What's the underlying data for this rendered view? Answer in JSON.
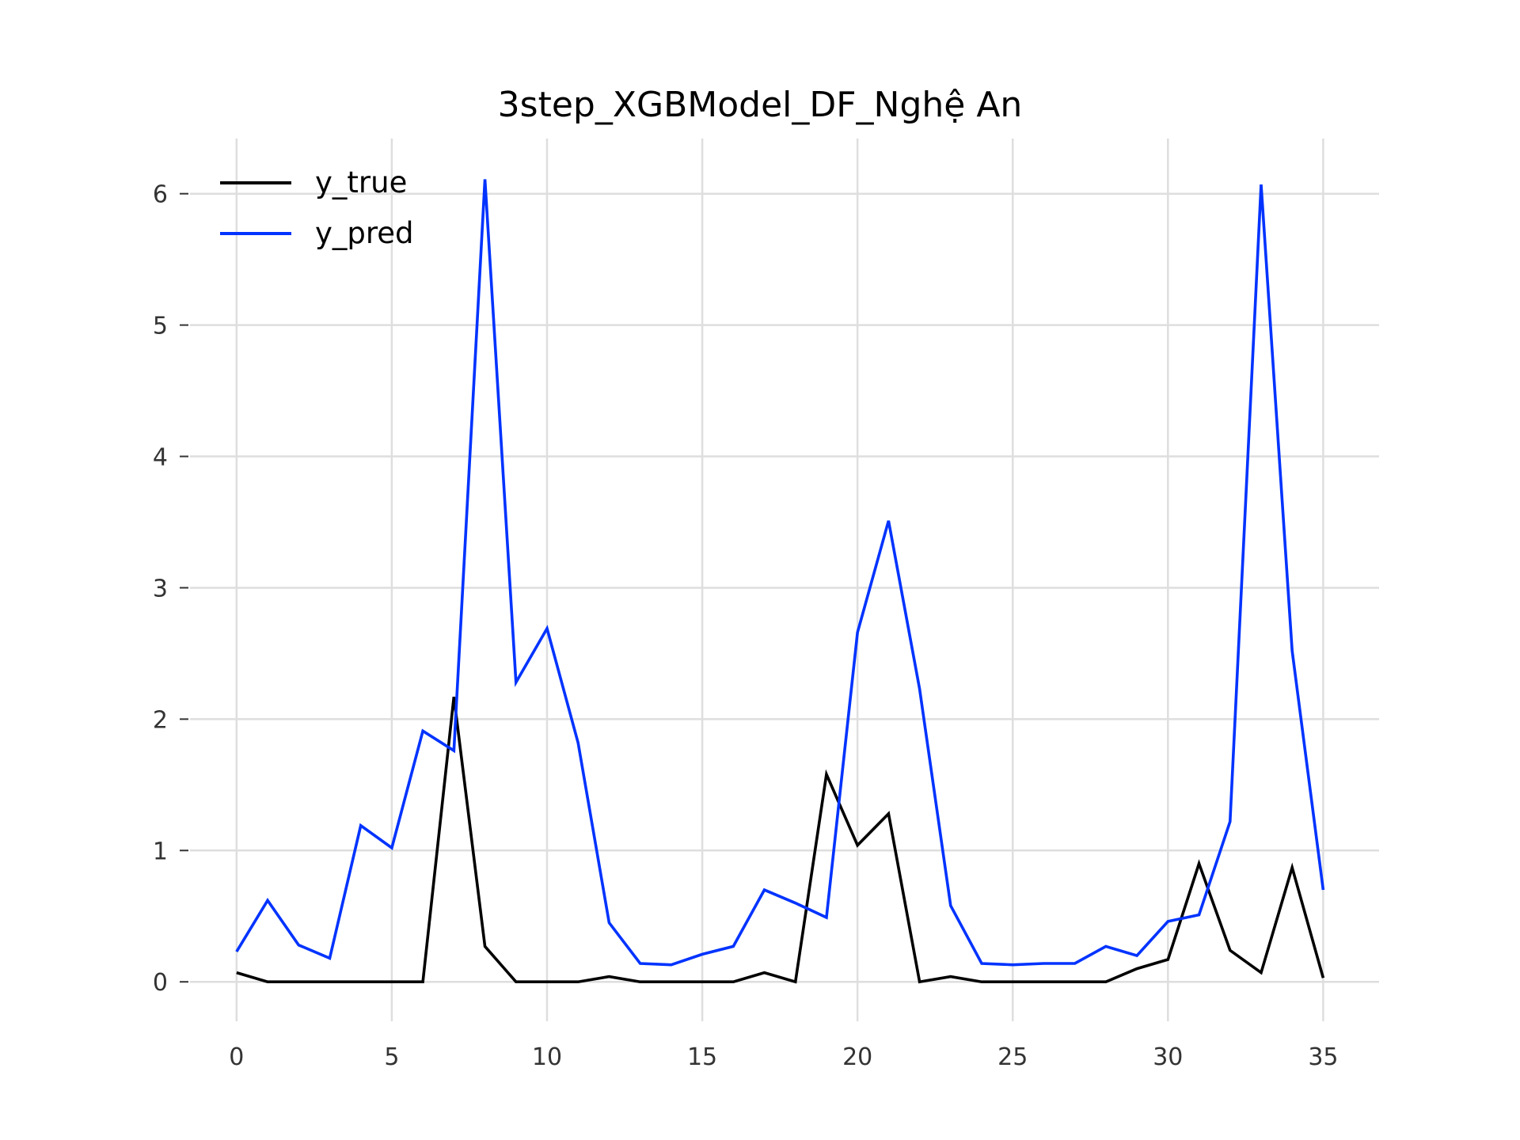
{
  "chart_data": {
    "type": "line",
    "title": "3step_XGBModel_DF_Nghệ An",
    "xlabel": "",
    "ylabel": "",
    "x": [
      0,
      1,
      2,
      3,
      4,
      5,
      6,
      7,
      8,
      9,
      10,
      11,
      12,
      13,
      14,
      15,
      16,
      17,
      18,
      19,
      20,
      21,
      22,
      23,
      24,
      25,
      26,
      27,
      28,
      29,
      30,
      31,
      32,
      33,
      34,
      35
    ],
    "xlim": [
      -1.5,
      36.8
    ],
    "ylim": [
      -0.3,
      6.42
    ],
    "xticks": [
      0,
      5,
      10,
      15,
      20,
      25,
      30,
      35
    ],
    "yticks": [
      0,
      1,
      2,
      3,
      4,
      5,
      6
    ],
    "grid": true,
    "legend_position": "top-left",
    "series": [
      {
        "name": "y_true",
        "color": "#000000",
        "values": [
          0.07,
          0,
          0,
          0,
          0,
          0,
          0,
          2.17,
          0.27,
          0,
          0,
          0,
          0.04,
          0,
          0,
          0,
          0,
          0.07,
          0,
          1.58,
          1.04,
          1.28,
          0,
          0.04,
          0,
          0,
          0,
          0,
          0,
          0.1,
          0.17,
          0.9,
          0.24,
          0.07,
          0.87,
          0.03
        ]
      },
      {
        "name": "y_pred",
        "color": "#0033ff",
        "values": [
          0.23,
          0.62,
          0.28,
          0.18,
          1.19,
          1.02,
          1.91,
          1.76,
          6.11,
          2.28,
          2.69,
          1.82,
          0.45,
          0.14,
          0.13,
          0.21,
          0.27,
          0.7,
          0.6,
          0.49,
          2.66,
          3.51,
          2.23,
          0.58,
          0.14,
          0.13,
          0.14,
          0.14,
          0.27,
          0.2,
          0.46,
          0.51,
          1.22,
          6.07,
          2.52,
          0.7
        ]
      }
    ]
  }
}
